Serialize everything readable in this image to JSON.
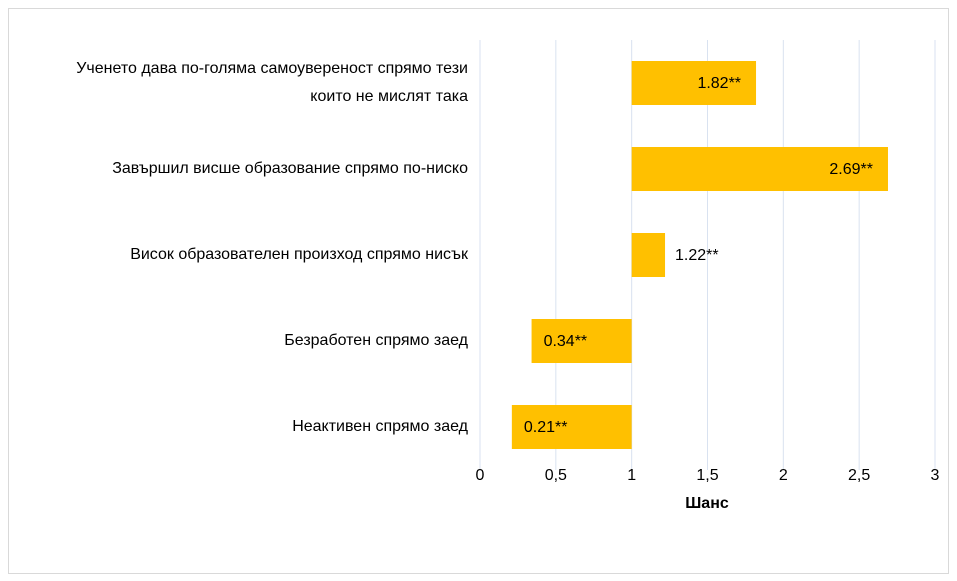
{
  "chart_data": {
    "type": "bar",
    "orientation": "horizontal",
    "categories": [
      "Ученето дава по-голяма самоувереност спрямо тези които не мислят така",
      "Завършил висше образование спрямо по-ниско",
      "Висок образователен произход спрямо нисък",
      "Безработен спрямо заед",
      "Неактивен спрямо заед"
    ],
    "values": [
      1.82,
      2.69,
      1.22,
      0.34,
      0.21
    ],
    "value_labels": [
      "1.82**",
      "2.69**",
      "1.22**",
      "0.34**",
      "0.21**"
    ],
    "color": "#ffc000",
    "xlabel": "Шанс",
    "xlim": [
      0,
      3
    ],
    "xorigin": 1,
    "xticks": [
      0,
      {
        "value": 0.5,
        "label": "0,5"
      },
      1,
      {
        "value": 1.5,
        "label": "1,5"
      },
      2,
      {
        "value": 2.5,
        "label": "2,5"
      },
      3
    ],
    "grid": true
  }
}
